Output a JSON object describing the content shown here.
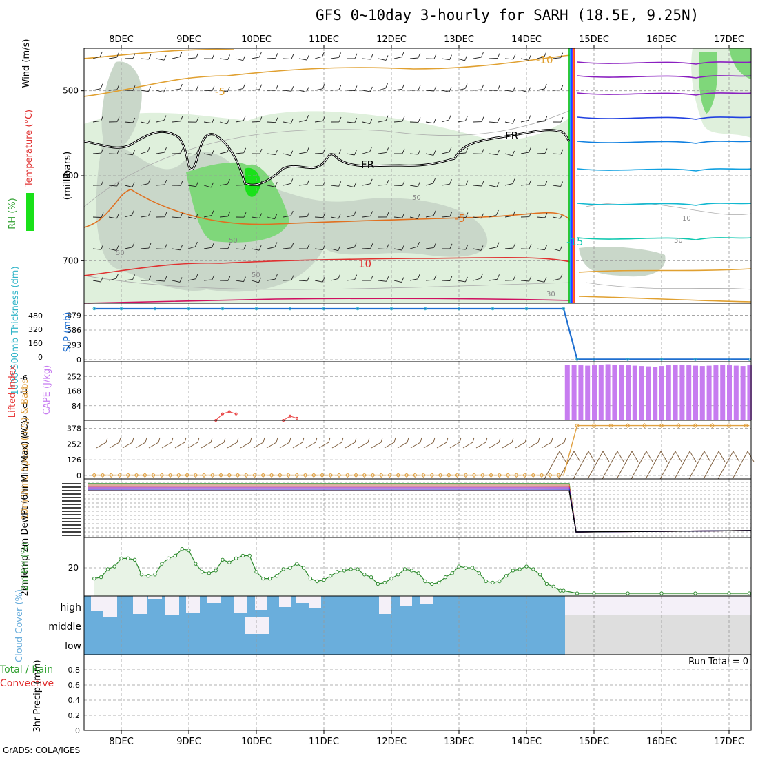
{
  "title": "GFS 0~10day 3-hourly for SARH (18.5E, 9.25N)",
  "credit": "GrADS: COLA/IGES",
  "colors": {
    "rh_light": "#dff0dc",
    "rh_mid": "#c9d7c9",
    "rh_green": "#7fd77a",
    "rh_bright": "#19e119",
    "slp": "#1f6fd0",
    "thickness": "#2fb4c8",
    "cape": "#c77cf0",
    "lifted": "#e84040",
    "wind10m": "#e0a040",
    "barb": "#806040",
    "rh2m": "#2e8b2e",
    "cloud": "#6aaedc",
    "precip_total": "#30a030",
    "precip_conv": "#e03030"
  },
  "x_axis": {
    "dates": [
      "8DEC",
      "9DEC",
      "10DEC",
      "11DEC",
      "12DEC",
      "13DEC",
      "14DEC",
      "15DEC",
      "16DEC",
      "17DEC"
    ]
  },
  "chart_data": [
    {
      "type": "heatmap",
      "panel": "upper-air",
      "ylabel": "(millibars)",
      "ylim": [
        750,
        450
      ],
      "yticks": [
        500,
        600,
        700
      ],
      "legend_labels": [
        "Wind (m/s)",
        "Temperature (°C)",
        "RH (%)"
      ],
      "contour_labels": [
        "-10",
        "-5",
        "FR",
        "FR",
        "-5",
        "-15",
        "10",
        "50",
        "50",
        "50",
        "30",
        "30",
        "10",
        "50"
      ]
    },
    {
      "type": "line",
      "panel": "slp-thickness",
      "ylabel_left": "1000-500mb Thickness (dm)",
      "ylabel_right": "SLP (mb)",
      "left_ticks": [
        "480",
        "320",
        "160",
        "0"
      ],
      "right_ticks": [
        "879",
        "586",
        "293",
        "0"
      ],
      "x": [
        7.6,
        8.0,
        8.5,
        9.0,
        9.5,
        10.0,
        10.5,
        11.0,
        11.5,
        12.0,
        12.5,
        13.0,
        13.5,
        14.0,
        14.55,
        14.75,
        15.0,
        15.5,
        16.0,
        16.5,
        17.0,
        17.3
      ],
      "series": [
        {
          "name": "SLP (mb)",
          "values": [
            1008,
            1008,
            1008,
            1008,
            1008,
            1008,
            1008,
            1008,
            1008,
            1008,
            1008,
            1008,
            1008,
            1008,
            1008,
            8,
            8,
            8,
            8,
            8,
            8,
            8
          ]
        }
      ]
    },
    {
      "type": "bar",
      "panel": "cape-li",
      "ylabel_left": "Lifted Index",
      "ylabel_right": "CAPE (J/kg)",
      "left_ticks": [
        "-6",
        "-3",
        "0",
        "3",
        "6"
      ],
      "right_ticks": [
        "252",
        "168",
        "84"
      ],
      "x": [
        14.6,
        14.7,
        14.8,
        14.9,
        15.0,
        15.1,
        15.2,
        15.3,
        15.4,
        15.5,
        15.6,
        15.7,
        15.8,
        15.9,
        16.0,
        16.1,
        16.2,
        16.3,
        16.4,
        16.5,
        16.6,
        16.7,
        16.8,
        16.9,
        17.0,
        17.1,
        17.2,
        17.3
      ],
      "values": [
        320,
        318,
        316,
        314,
        316,
        318,
        322,
        320,
        318,
        316,
        314,
        312,
        310,
        308,
        312,
        316,
        320,
        318,
        316,
        314,
        312,
        314,
        316,
        318,
        316,
        314,
        312,
        316
      ],
      "lifted_index_line": {
        "x": [
          9.4,
          9.5,
          9.6,
          9.7,
          10.4,
          10.5,
          10.6
        ],
        "values": [
          6,
          4.5,
          4,
          4.5,
          6,
          5,
          5.5
        ]
      }
    },
    {
      "type": "line",
      "panel": "wind10m",
      "ylabel": "10m Wind Speed (m/s) & Barbs",
      "yticks": [
        "378",
        "252",
        "126",
        "0"
      ],
      "x": [
        7.6,
        14.55,
        14.75,
        15.0,
        15.5,
        16.0,
        16.5,
        17.0,
        17.3
      ],
      "series": [
        {
          "name": "10m Wind Speed",
          "values": [
            2,
            2,
            400,
            400,
            400,
            400,
            400,
            400,
            400
          ]
        }
      ]
    },
    {
      "type": "line",
      "panel": "temp2m",
      "ylabel": "2m Temp 2m DewPt (6hr Min/Max) (°C)",
      "note": "dense overlapping tick labels"
    },
    {
      "type": "area",
      "panel": "rh2m",
      "ylabel": "2m RH (%)",
      "yticks": [
        "20"
      ],
      "x": [
        7.6,
        7.7,
        7.8,
        7.9,
        8.0,
        8.1,
        8.2,
        8.3,
        8.4,
        8.5,
        8.6,
        8.7,
        8.8,
        8.9,
        9.0,
        9.1,
        9.2,
        9.3,
        9.4,
        9.5,
        9.6,
        9.7,
        9.8,
        9.9,
        10.0,
        10.1,
        10.2,
        10.3,
        10.4,
        10.5,
        10.6,
        10.7,
        10.8,
        10.9,
        11.0,
        11.1,
        11.2,
        11.3,
        11.4,
        11.5,
        11.6,
        11.7,
        11.8,
        11.9,
        12.0,
        12.1,
        12.2,
        12.3,
        12.4,
        12.5,
        12.6,
        12.7,
        12.8,
        12.9,
        13.0,
        13.1,
        13.2,
        13.3,
        13.4,
        13.5,
        13.6,
        13.7,
        13.8,
        13.9,
        14.0,
        14.1,
        14.2,
        14.3,
        14.4,
        14.5,
        14.55,
        14.75,
        15.0,
        15.5,
        16.0,
        16.5,
        17.0,
        17.3
      ],
      "values": [
        12,
        13,
        19,
        21,
        27,
        27,
        26,
        15,
        14,
        15,
        23,
        27,
        29,
        34,
        33,
        23,
        17,
        16,
        18,
        26,
        24,
        27,
        29,
        29,
        17,
        12,
        12,
        14,
        19,
        20,
        23,
        20,
        12,
        10,
        11,
        14,
        17,
        18,
        19,
        19,
        15,
        13,
        8,
        9,
        12,
        15,
        19,
        18,
        16,
        10,
        8,
        9,
        13,
        16,
        21,
        20,
        20,
        16,
        10,
        9,
        10,
        14,
        18,
        19,
        21,
        19,
        15,
        8,
        6,
        3,
        3,
        1,
        1,
        1,
        1,
        1,
        1,
        1
      ]
    },
    {
      "type": "area",
      "panel": "cloud",
      "ylabel": "Cloud Cover (%)",
      "layer_labels": [
        "high",
        "middle",
        "low"
      ]
    },
    {
      "type": "bar",
      "panel": "precip",
      "ylabel": "3hr Precip (mm)",
      "legend_labels": [
        "Total / Rain",
        "Convective"
      ],
      "yticks": [
        "0.8",
        "0.6",
        "0.4",
        "0.2",
        "0"
      ],
      "ylim": [
        0,
        1
      ],
      "run_total": "Run Total = 0",
      "values": []
    }
  ]
}
